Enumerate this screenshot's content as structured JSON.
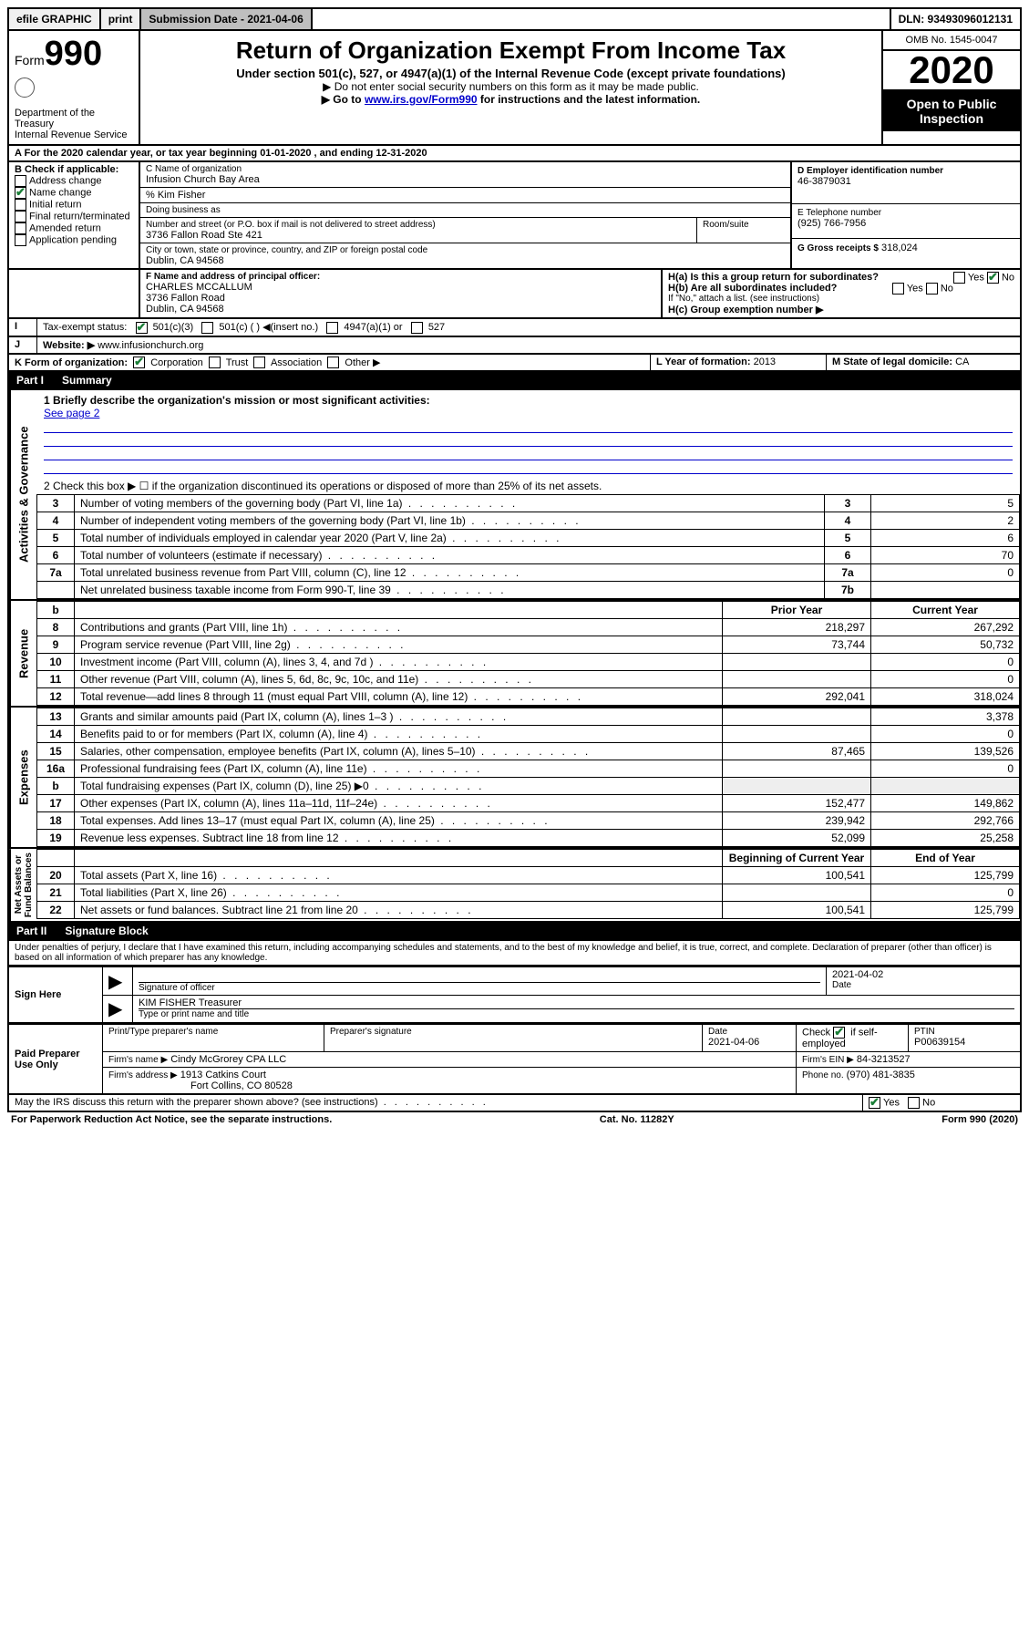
{
  "topbar": {
    "efile": "efile GRAPHIC",
    "print": "print",
    "submission_label": "Submission Date - 2021-04-06",
    "dln": "DLN: 93493096012131"
  },
  "header": {
    "form_label": "Form",
    "form_number": "990",
    "dept": "Department of the Treasury",
    "irs": "Internal Revenue Service",
    "title": "Return of Organization Exempt From Income Tax",
    "subtitle": "Under section 501(c), 527, or 4947(a)(1) of the Internal Revenue Code (except private foundations)",
    "note1": "▶ Do not enter social security numbers on this form as it may be made public.",
    "note2_pre": "▶ Go to ",
    "note2_link": "www.irs.gov/Form990",
    "note2_post": " for instructions and the latest information.",
    "omb": "OMB No. 1545-0047",
    "year": "2020",
    "open_public": "Open to Public Inspection"
  },
  "line_a": "A For the 2020 calendar year, or tax year beginning 01-01-2020   , and ending 12-31-2020",
  "box_b": {
    "title": "B Check if applicable:",
    "items": [
      {
        "label": "Address change",
        "checked": false
      },
      {
        "label": "Name change",
        "checked": true
      },
      {
        "label": "Initial return",
        "checked": false
      },
      {
        "label": "Final return/terminated",
        "checked": false
      },
      {
        "label": "Amended return",
        "checked": false
      },
      {
        "label": "Application pending",
        "checked": false
      }
    ]
  },
  "box_c": {
    "label_name": "C Name of organization",
    "org_name": "Infusion Church Bay Area",
    "care_of": "% Kim Fisher",
    "dba_label": "Doing business as",
    "street_label": "Number and street (or P.O. box if mail is not delivered to street address)",
    "room_label": "Room/suite",
    "street": "3736 Fallon Road Ste 421",
    "city_label": "City or town, state or province, country, and ZIP or foreign postal code",
    "city": "Dublin, CA  94568"
  },
  "box_d": {
    "label": "D Employer identification number",
    "value": "46-3879031"
  },
  "box_e": {
    "label": "E Telephone number",
    "value": "(925) 766-7956"
  },
  "box_g": {
    "label": "G Gross receipts $",
    "value": "318,024"
  },
  "box_f": {
    "label": "F  Name and address of principal officer:",
    "name": "CHARLES MCCALLUM",
    "street": "3736 Fallon Road",
    "city": "Dublin, CA  94568"
  },
  "box_h": {
    "a_label": "H(a)  Is this a group return for subordinates?",
    "a_yes": "Yes",
    "a_no": "No",
    "b_label": "H(b)  Are all subordinates included?",
    "b_note": "If \"No,\" attach a list. (see instructions)",
    "c_label": "H(c)  Group exemption number ▶"
  },
  "box_i": {
    "label": "Tax-exempt status:",
    "opts": [
      "501(c)(3)",
      "501(c) (  ) ◀(insert no.)",
      "4947(a)(1) or",
      "527"
    ]
  },
  "box_j": {
    "label": "Website: ▶",
    "value": "www.infusionchurch.org"
  },
  "box_k": {
    "label": "K Form of organization:",
    "opts": [
      "Corporation",
      "Trust",
      "Association",
      "Other ▶"
    ]
  },
  "box_l": {
    "label": "L Year of formation:",
    "value": "2013"
  },
  "box_m": {
    "label": "M State of legal domicile:",
    "value": "CA"
  },
  "part1": {
    "title": "Part I",
    "subtitle": "Summary",
    "line1_label": "1  Briefly describe the organization's mission or most significant activities:",
    "line1_value": "See page 2",
    "line2": "2    Check this box ▶ ☐  if the organization discontinued its operations or disposed of more than 25% of its net assets.",
    "governance_rows": [
      {
        "n": "3",
        "desc": "Number of voting members of the governing body (Part VI, line 1a)",
        "box": "3",
        "val": "5"
      },
      {
        "n": "4",
        "desc": "Number of independent voting members of the governing body (Part VI, line 1b)",
        "box": "4",
        "val": "2"
      },
      {
        "n": "5",
        "desc": "Total number of individuals employed in calendar year 2020 (Part V, line 2a)",
        "box": "5",
        "val": "6"
      },
      {
        "n": "6",
        "desc": "Total number of volunteers (estimate if necessary)",
        "box": "6",
        "val": "70"
      },
      {
        "n": "7a",
        "desc": "Total unrelated business revenue from Part VIII, column (C), line 12",
        "box": "7a",
        "val": "0"
      },
      {
        "n": "",
        "desc": "Net unrelated business taxable income from Form 990-T, line 39",
        "box": "7b",
        "val": ""
      }
    ],
    "two_col_header": {
      "b": "b",
      "prior": "Prior Year",
      "current": "Current Year"
    },
    "revenue_rows": [
      {
        "n": "8",
        "desc": "Contributions and grants (Part VIII, line 1h)",
        "prior": "218,297",
        "cur": "267,292"
      },
      {
        "n": "9",
        "desc": "Program service revenue (Part VIII, line 2g)",
        "prior": "73,744",
        "cur": "50,732"
      },
      {
        "n": "10",
        "desc": "Investment income (Part VIII, column (A), lines 3, 4, and 7d )",
        "prior": "",
        "cur": "0"
      },
      {
        "n": "11",
        "desc": "Other revenue (Part VIII, column (A), lines 5, 6d, 8c, 9c, 10c, and 11e)",
        "prior": "",
        "cur": "0"
      },
      {
        "n": "12",
        "desc": "Total revenue—add lines 8 through 11 (must equal Part VIII, column (A), line 12)",
        "prior": "292,041",
        "cur": "318,024"
      }
    ],
    "expense_rows": [
      {
        "n": "13",
        "desc": "Grants and similar amounts paid (Part IX, column (A), lines 1–3 )",
        "prior": "",
        "cur": "3,378"
      },
      {
        "n": "14",
        "desc": "Benefits paid to or for members (Part IX, column (A), line 4)",
        "prior": "",
        "cur": "0"
      },
      {
        "n": "15",
        "desc": "Salaries, other compensation, employee benefits (Part IX, column (A), lines 5–10)",
        "prior": "87,465",
        "cur": "139,526"
      },
      {
        "n": "16a",
        "desc": "Professional fundraising fees (Part IX, column (A), line 11e)",
        "prior": "",
        "cur": "0"
      },
      {
        "n": "b",
        "desc": "Total fundraising expenses (Part IX, column (D), line 25) ▶0",
        "prior": "—",
        "cur": "—"
      },
      {
        "n": "17",
        "desc": "Other expenses (Part IX, column (A), lines 11a–11d, 11f–24e)",
        "prior": "152,477",
        "cur": "149,862"
      },
      {
        "n": "18",
        "desc": "Total expenses. Add lines 13–17 (must equal Part IX, column (A), line 25)",
        "prior": "239,942",
        "cur": "292,766"
      },
      {
        "n": "19",
        "desc": "Revenue less expenses. Subtract line 18 from line 12",
        "prior": "52,099",
        "cur": "25,258"
      }
    ],
    "net_header": {
      "prior": "Beginning of Current Year",
      "cur": "End of Year"
    },
    "net_rows": [
      {
        "n": "20",
        "desc": "Total assets (Part X, line 16)",
        "prior": "100,541",
        "cur": "125,799"
      },
      {
        "n": "21",
        "desc": "Total liabilities (Part X, line 26)",
        "prior": "",
        "cur": "0"
      },
      {
        "n": "22",
        "desc": "Net assets or fund balances. Subtract line 21 from line 20",
        "prior": "100,541",
        "cur": "125,799"
      }
    ]
  },
  "part2": {
    "title": "Part II",
    "subtitle": "Signature Block",
    "declaration": "Under penalties of perjury, I declare that I have examined this return, including accompanying schedules and statements, and to the best of my knowledge and belief, it is true, correct, and complete. Declaration of preparer (other than officer) is based on all information of which preparer has any knowledge."
  },
  "sign": {
    "left": "Sign Here",
    "sig_label": "Signature of officer",
    "date": "2021-04-02",
    "date_label": "Date",
    "name": "KIM FISHER  Treasurer",
    "name_label": "Type or print name and title"
  },
  "preparer": {
    "left": "Paid Preparer Use Only",
    "print_label": "Print/Type preparer's name",
    "sig_label": "Preparer's signature",
    "date_label": "Date",
    "date": "2021-04-06",
    "check_label": "Check ☑ if self-employed",
    "ptin_label": "PTIN",
    "ptin": "P00639154",
    "firm_name_label": "Firm's name    ▶",
    "firm_name": "Cindy McGrorey CPA LLC",
    "firm_ein_label": "Firm's EIN ▶",
    "firm_ein": "84-3213527",
    "firm_addr_label": "Firm's address ▶",
    "firm_addr1": "1913 Catkins Court",
    "firm_addr2": "Fort Collins, CO  80528",
    "phone_label": "Phone no.",
    "phone": "(970) 481-3835"
  },
  "discuss": {
    "q": "May the IRS discuss this return with the preparer shown above? (see instructions)",
    "yes": "Yes",
    "no": "No"
  },
  "footer": {
    "left": "For Paperwork Reduction Act Notice, see the separate instructions.",
    "mid": "Cat. No. 11282Y",
    "right": "Form 990 (2020)"
  }
}
